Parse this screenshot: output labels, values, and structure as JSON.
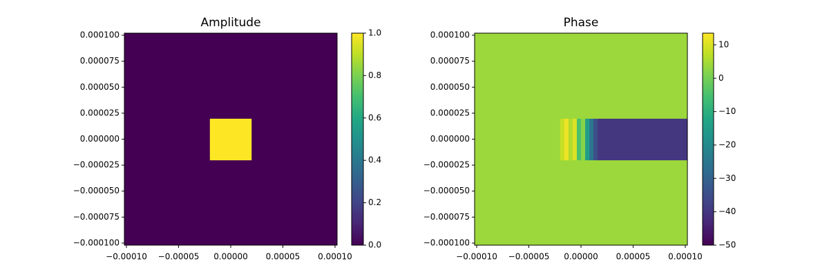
{
  "chart_data": [
    {
      "type": "heatmap",
      "title": "Amplitude",
      "colormap": "viridis",
      "x_edges": [
        -0.000102,
        -2e-05,
        2e-05,
        0.000102
      ],
      "y_edges": [
        -0.000102,
        -2e-05,
        2e-05,
        0.000102
      ],
      "values": [
        [
          0,
          0,
          0
        ],
        [
          0,
          1,
          0
        ],
        [
          0,
          0,
          0
        ]
      ],
      "xlim": [
        -0.000102,
        0.000102
      ],
      "ylim": [
        -0.000102,
        0.000102
      ],
      "xticks": [
        {
          "value": -0.0001,
          "label": "−0.00010"
        },
        {
          "value": -5e-05,
          "label": "−0.00005"
        },
        {
          "value": 0,
          "label": "0.00000"
        },
        {
          "value": 5e-05,
          "label": "0.00005"
        },
        {
          "value": 0.0001,
          "label": "0.00010"
        }
      ],
      "yticks": [
        {
          "value": -0.0001,
          "label": "−0.000100"
        },
        {
          "value": -7.5e-05,
          "label": "−0.000075"
        },
        {
          "value": -5e-05,
          "label": "−0.000050"
        },
        {
          "value": -2.5e-05,
          "label": "−0.000025"
        },
        {
          "value": 0,
          "label": "0.000000"
        },
        {
          "value": 2.5e-05,
          "label": "0.000025"
        },
        {
          "value": 5e-05,
          "label": "0.000050"
        },
        {
          "value": 7.5e-05,
          "label": "0.000075"
        },
        {
          "value": 0.0001,
          "label": "0.000100"
        }
      ],
      "clim": [
        0,
        1
      ],
      "cticks": [
        {
          "value": 0,
          "label": "0.0"
        },
        {
          "value": 0.2,
          "label": "0.2"
        },
        {
          "value": 0.4,
          "label": "0.4"
        },
        {
          "value": 0.6,
          "label": "0.6"
        },
        {
          "value": 0.8,
          "label": "0.8"
        },
        {
          "value": 1,
          "label": "1.0"
        }
      ]
    },
    {
      "type": "heatmap",
      "title": "Phase",
      "colormap": "viridis",
      "x_edges": [
        -0.000102,
        -2e-05,
        -1.6e-05,
        -1.2e-05,
        -8e-06,
        -4e-06,
        0,
        4e-06,
        8e-06,
        1.2e-05,
        1.6e-05,
        0.000102
      ],
      "y_edges": [
        -0.000102,
        -2e-05,
        2e-05,
        0.000102
      ],
      "values": [
        [
          4,
          4,
          4,
          4,
          4,
          4,
          4,
          4,
          4,
          4,
          4
        ],
        [
          4,
          8,
          12,
          6,
          10,
          -5,
          2,
          -15,
          -25,
          -35,
          -40
        ],
        [
          4,
          4,
          4,
          4,
          4,
          4,
          4,
          4,
          4,
          4,
          4
        ]
      ],
      "xlim": [
        -0.000102,
        0.000102
      ],
      "ylim": [
        -0.000102,
        0.000102
      ],
      "xticks": [
        {
          "value": -0.0001,
          "label": "−0.00010"
        },
        {
          "value": -5e-05,
          "label": "−0.00005"
        },
        {
          "value": 0,
          "label": "0.00000"
        },
        {
          "value": 5e-05,
          "label": "0.00005"
        },
        {
          "value": 0.0001,
          "label": "0.00010"
        }
      ],
      "yticks": [
        {
          "value": -0.0001,
          "label": "−0.000100"
        },
        {
          "value": -7.5e-05,
          "label": "−0.000075"
        },
        {
          "value": -5e-05,
          "label": "−0.000050"
        },
        {
          "value": -2.5e-05,
          "label": "−0.000025"
        },
        {
          "value": 0,
          "label": "0.000000"
        },
        {
          "value": 2.5e-05,
          "label": "0.000025"
        },
        {
          "value": 5e-05,
          "label": "0.000050"
        },
        {
          "value": 7.5e-05,
          "label": "0.000075"
        },
        {
          "value": 0.0001,
          "label": "0.000100"
        }
      ],
      "clim": [
        -50,
        13.5
      ],
      "cticks": [
        {
          "value": -50,
          "label": "−50"
        },
        {
          "value": -40,
          "label": "−40"
        },
        {
          "value": -30,
          "label": "−30"
        },
        {
          "value": -20,
          "label": "−20"
        },
        {
          "value": -10,
          "label": "−10"
        },
        0,
        10
      ]
    }
  ]
}
